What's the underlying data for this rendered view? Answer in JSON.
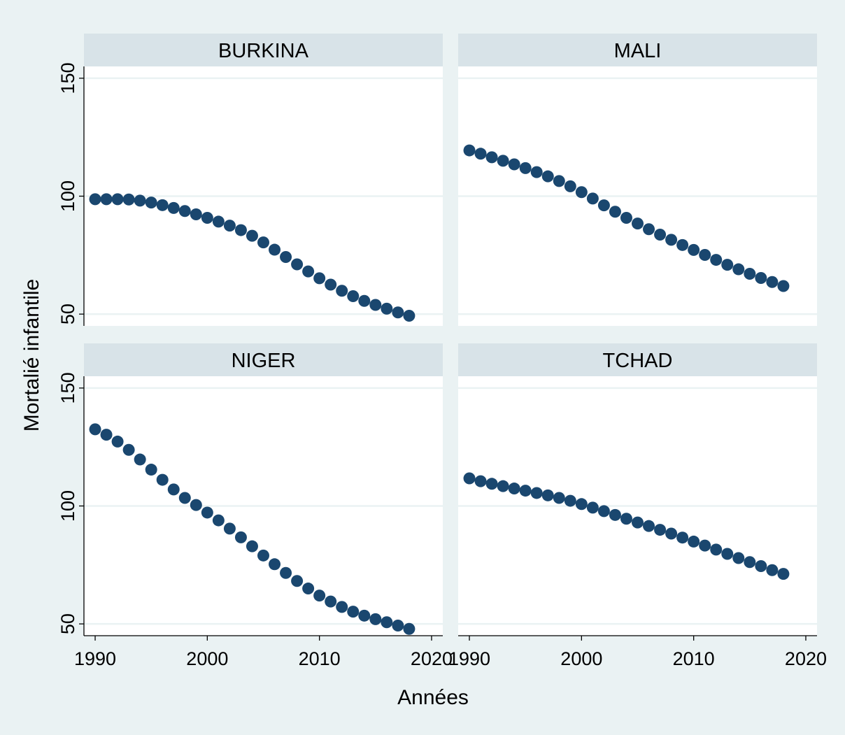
{
  "chart_data": {
    "type": "scatter",
    "xlabel": "Années",
    "ylabel": "Mortalié infantile",
    "xlim": [
      1989,
      2021
    ],
    "ylim": [
      45,
      155
    ],
    "x_ticks": [
      1990,
      2000,
      2010,
      2020
    ],
    "y_ticks": [
      50,
      100,
      150
    ],
    "colors": {
      "marker": "#1a476f",
      "strip": "#d8e3e8",
      "background": "#eaf2f3"
    },
    "x": [
      1990,
      1991,
      1992,
      1993,
      1994,
      1995,
      1996,
      1997,
      1998,
      1999,
      2000,
      2001,
      2002,
      2003,
      2004,
      2005,
      2006,
      2007,
      2008,
      2009,
      2010,
      2011,
      2012,
      2013,
      2014,
      2015,
      2016,
      2017,
      2018
    ],
    "panels": [
      {
        "title": "BURKINA",
        "values": [
          98.7,
          98.7,
          98.7,
          98.6,
          98.1,
          97.3,
          96.2,
          95.0,
          93.7,
          92.3,
          90.8,
          89.2,
          87.5,
          85.6,
          83.2,
          80.4,
          77.3,
          74.2,
          71.1,
          68.1,
          65.2,
          62.5,
          59.9,
          57.6,
          55.6,
          53.9,
          52.3,
          50.7,
          49.3
        ]
      },
      {
        "title": "MALI",
        "values": [
          119.4,
          118.0,
          116.5,
          115.0,
          113.5,
          111.9,
          110.2,
          108.4,
          106.4,
          104.2,
          101.7,
          99.0,
          96.1,
          93.4,
          90.8,
          88.4,
          86.0,
          83.7,
          81.5,
          79.3,
          77.2,
          75.1,
          73.0,
          70.9,
          69.0,
          67.1,
          65.3,
          63.6,
          61.9
        ]
      },
      {
        "title": "NIGER",
        "values": [
          132.5,
          130.2,
          127.3,
          123.8,
          119.7,
          115.4,
          111.1,
          107.0,
          103.4,
          100.4,
          97.2,
          93.9,
          90.4,
          86.7,
          82.9,
          79.0,
          75.3,
          71.6,
          68.2,
          65.0,
          62.0,
          59.5,
          57.2,
          55.2,
          53.5,
          52.0,
          50.7,
          49.3,
          47.9
        ]
      },
      {
        "title": "TCHAD",
        "values": [
          111.7,
          110.5,
          109.4,
          108.4,
          107.4,
          106.5,
          105.5,
          104.5,
          103.4,
          102.2,
          100.8,
          99.3,
          97.8,
          96.2,
          94.6,
          93.0,
          91.5,
          89.9,
          88.3,
          86.6,
          84.9,
          83.2,
          81.5,
          79.7,
          77.9,
          76.2,
          74.5,
          72.8,
          71.2
        ]
      }
    ]
  }
}
